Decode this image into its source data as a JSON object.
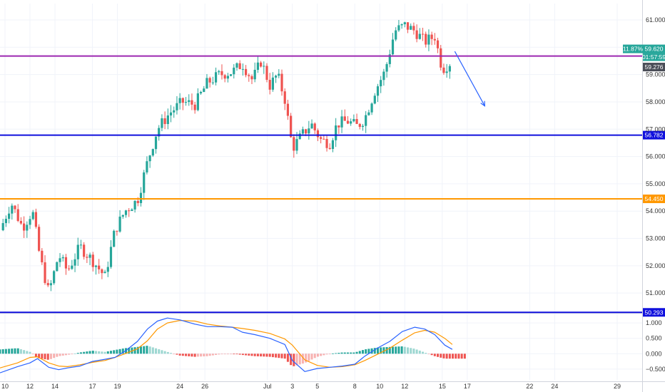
{
  "chart_data": [
    {
      "type": "candlestick",
      "y_axis": {
        "range": [
          50.3,
          61.6
        ],
        "ticks": [
          "61.000",
          "60.000",
          "59.000",
          "58.000",
          "57.000",
          "56.000",
          "55.000",
          "54.000",
          "53.000",
          "52.000",
          "51.000"
        ]
      },
      "x_axis": {
        "ticks": [
          "10",
          "12",
          "14",
          "17",
          "19",
          "24",
          "26",
          "Jul",
          "3",
          "5",
          "8",
          "10",
          "12",
          "15",
          "17",
          "22",
          "24",
          "29"
        ],
        "tick_days": [
          10,
          12,
          14,
          17,
          19,
          24,
          26,
          31,
          33,
          35,
          38,
          40,
          42,
          45,
          47,
          52,
          54,
          59
        ],
        "range_days": [
          9.6,
          61
        ]
      },
      "price_series": [
        [
          9.6,
          53.3
        ],
        [
          10.5,
          54.3
        ],
        [
          11.4,
          53.4
        ],
        [
          12.2,
          54.0
        ],
        [
          12.8,
          52.3
        ],
        [
          13.5,
          51.0
        ],
        [
          14.3,
          52.4
        ],
        [
          15.0,
          51.8
        ],
        [
          16.0,
          52.7
        ],
        [
          17.0,
          52.2
        ],
        [
          18.0,
          51.6
        ],
        [
          18.8,
          53.3
        ],
        [
          19.6,
          54.0
        ],
        [
          20.6,
          54.4
        ],
        [
          21.4,
          55.8
        ],
        [
          22.2,
          57.0
        ],
        [
          23.2,
          57.6
        ],
        [
          24.2,
          58.0
        ],
        [
          25.2,
          57.9
        ],
        [
          26.2,
          58.7
        ],
        [
          27.2,
          59.0
        ],
        [
          28.2,
          59.1
        ],
        [
          29.0,
          59.4
        ],
        [
          29.8,
          58.8
        ],
        [
          30.5,
          59.5
        ],
        [
          31.2,
          58.6
        ],
        [
          31.8,
          59.0
        ],
        [
          32.4,
          58.1
        ],
        [
          33.0,
          56.3
        ],
        [
          33.8,
          56.8
        ],
        [
          34.5,
          57.2
        ],
        [
          35.3,
          56.6
        ],
        [
          36.0,
          56.5
        ],
        [
          36.6,
          57.2
        ],
        [
          37.4,
          57.3
        ],
        [
          38.2,
          57.1
        ],
        [
          38.8,
          57.4
        ],
        [
          39.6,
          58.4
        ],
        [
          40.4,
          59.1
        ],
        [
          41.2,
          60.6
        ],
        [
          42.0,
          60.8
        ],
        [
          42.8,
          60.6
        ],
        [
          43.6,
          60.2
        ],
        [
          44.4,
          60.4
        ],
        [
          45.0,
          59.2
        ],
        [
          45.8,
          59.5
        ]
      ],
      "levels": [
        {
          "value": 59.68,
          "color": "#9c27b0",
          "label": "",
          "axis_tag": false
        },
        {
          "value": 56.782,
          "color": "#1010dd",
          "label": "56.782",
          "axis_tag": true
        },
        {
          "value": 54.45,
          "color": "#ff9800",
          "label": "54.450",
          "axis_tag": true
        },
        {
          "value": 50.293,
          "color": "#1010dd",
          "label": "50.293",
          "axis_tag": true
        }
      ],
      "price_tags": {
        "current_change": "11.87%",
        "current_price": "59.620",
        "countdown": "01:57:59",
        "last_price": "59.276"
      },
      "projection_arrow": {
        "from": [
          46.0,
          59.85
        ],
        "to": [
          48.4,
          57.85
        ],
        "color": "#2962ff"
      },
      "colors": {
        "up": "#26a69a",
        "down": "#ef5350",
        "tag_green": "#26a69a",
        "tag_dark": "#4a4d57"
      }
    },
    {
      "type": "macd",
      "y_axis": {
        "range": [
          -0.85,
          1.28
        ],
        "ticks": [
          "1.000",
          "0.500",
          "0.000",
          "−0.500"
        ]
      },
      "macd_line": [
        [
          9.6,
          -0.62
        ],
        [
          11.0,
          -0.42
        ],
        [
          12.0,
          -0.3
        ],
        [
          12.6,
          -0.16
        ],
        [
          13.5,
          -0.44
        ],
        [
          14.3,
          -0.52
        ],
        [
          15.0,
          -0.46
        ],
        [
          16.0,
          -0.4
        ],
        [
          17.0,
          -0.25
        ],
        [
          18.0,
          -0.18
        ],
        [
          18.8,
          -0.12
        ],
        [
          19.6,
          0.08
        ],
        [
          20.6,
          0.4
        ],
        [
          21.4,
          0.8
        ],
        [
          22.2,
          1.06
        ],
        [
          23.0,
          1.16
        ],
        [
          24.0,
          1.1
        ],
        [
          25.2,
          0.96
        ],
        [
          26.2,
          0.88
        ],
        [
          27.2,
          0.88
        ],
        [
          28.2,
          0.86
        ],
        [
          29.0,
          0.7
        ],
        [
          30.0,
          0.62
        ],
        [
          31.2,
          0.5
        ],
        [
          32.4,
          0.3
        ],
        [
          33.0,
          -0.22
        ],
        [
          34.0,
          -0.58
        ],
        [
          35.0,
          -0.48
        ],
        [
          36.0,
          -0.44
        ],
        [
          37.0,
          -0.4
        ],
        [
          38.0,
          -0.34
        ],
        [
          38.8,
          -0.08
        ],
        [
          39.8,
          0.18
        ],
        [
          40.8,
          0.4
        ],
        [
          41.8,
          0.72
        ],
        [
          42.8,
          0.86
        ],
        [
          43.6,
          0.8
        ],
        [
          44.4,
          0.62
        ],
        [
          45.2,
          0.28
        ],
        [
          45.8,
          0.14
        ]
      ],
      "signal_line": [
        [
          9.6,
          -0.46
        ],
        [
          11.0,
          -0.3
        ],
        [
          12.0,
          -0.12
        ],
        [
          12.6,
          -0.1
        ],
        [
          13.5,
          -0.3
        ],
        [
          14.3,
          -0.4
        ],
        [
          15.0,
          -0.42
        ],
        [
          16.0,
          -0.36
        ],
        [
          17.0,
          -0.28
        ],
        [
          18.0,
          -0.22
        ],
        [
          18.8,
          -0.12
        ],
        [
          19.6,
          0.0
        ],
        [
          20.6,
          0.16
        ],
        [
          21.4,
          0.42
        ],
        [
          22.2,
          0.8
        ],
        [
          23.0,
          1.0
        ],
        [
          24.0,
          1.08
        ],
        [
          25.2,
          1.06
        ],
        [
          26.2,
          0.96
        ],
        [
          27.2,
          0.9
        ],
        [
          28.2,
          0.86
        ],
        [
          29.0,
          0.82
        ],
        [
          30.0,
          0.76
        ],
        [
          31.2,
          0.66
        ],
        [
          32.4,
          0.48
        ],
        [
          33.0,
          0.28
        ],
        [
          34.0,
          -0.2
        ],
        [
          35.0,
          -0.38
        ],
        [
          36.0,
          -0.44
        ],
        [
          37.0,
          -0.42
        ],
        [
          38.0,
          -0.36
        ],
        [
          38.8,
          -0.22
        ],
        [
          39.8,
          -0.02
        ],
        [
          40.8,
          0.18
        ],
        [
          41.8,
          0.44
        ],
        [
          42.8,
          0.68
        ],
        [
          43.6,
          0.76
        ],
        [
          44.4,
          0.7
        ],
        [
          45.2,
          0.5
        ],
        [
          45.8,
          0.3
        ]
      ],
      "histogram_points": [
        [
          9.6,
          0.14
        ],
        [
          11.0,
          0.18
        ],
        [
          12.0,
          0.06
        ],
        [
          12.6,
          -0.14
        ],
        [
          13.5,
          -0.2
        ],
        [
          14.3,
          -0.08
        ],
        [
          15.0,
          -0.04
        ],
        [
          16.0,
          0.04
        ],
        [
          17.0,
          0.1
        ],
        [
          18.0,
          0.06
        ],
        [
          18.8,
          0.12
        ],
        [
          19.6,
          0.18
        ],
        [
          20.6,
          0.22
        ],
        [
          21.4,
          0.26
        ],
        [
          22.2,
          0.16
        ],
        [
          23.0,
          0.06
        ],
        [
          24.0,
          -0.06
        ],
        [
          25.2,
          -0.1
        ],
        [
          26.2,
          -0.08
        ],
        [
          27.2,
          -0.02
        ],
        [
          28.2,
          0.0
        ],
        [
          29.0,
          -0.04
        ],
        [
          30.0,
          -0.08
        ],
        [
          31.2,
          -0.1
        ],
        [
          32.4,
          -0.16
        ],
        [
          33.0,
          -0.42
        ],
        [
          34.0,
          -0.3
        ],
        [
          35.0,
          -0.1
        ],
        [
          36.0,
          0.0
        ],
        [
          37.0,
          0.04
        ],
        [
          38.0,
          0.04
        ],
        [
          38.8,
          0.14
        ],
        [
          39.8,
          0.2
        ],
        [
          40.8,
          0.22
        ],
        [
          41.8,
          0.24
        ],
        [
          42.8,
          0.16
        ],
        [
          43.6,
          0.04
        ],
        [
          44.4,
          -0.08
        ],
        [
          45.2,
          -0.16
        ],
        [
          45.8,
          -0.16
        ]
      ],
      "colors": {
        "macd": "#2962ff",
        "signal": "#ff9800",
        "hist_up": "#26a69a",
        "hist_down": "#ef5350"
      }
    }
  ]
}
